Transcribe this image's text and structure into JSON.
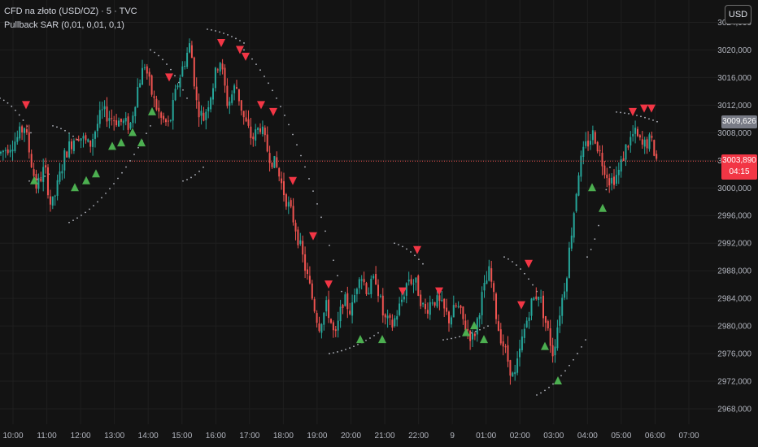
{
  "legend": {
    "symbol": "CFD na złoto (USD/OZ) · 5 · TVC",
    "indicator": "Pullback SAR (0,01, 0,01, 0,1)"
  },
  "currency_button": "USD",
  "price_tags": {
    "sar_value": "3009,626",
    "last_price": "3003,890",
    "countdown": "04:15"
  },
  "colors": {
    "background": "#131313",
    "up": "#26a69a",
    "down": "#ef5350",
    "buy_marker": "#4caf50",
    "sell_marker": "#f23645",
    "sar_dots": "#b2b5be"
  },
  "chart_data": {
    "type": "candlestick",
    "title": "",
    "y_axis": {
      "range": [
        2966,
        3027
      ],
      "ticks": [
        "3024,000",
        "3020,000",
        "3016,000",
        "3012,000",
        "3008,000",
        "3004,000",
        "3000,000",
        "2996,000",
        "2992,000",
        "2988,000",
        "2984,000",
        "2980,000",
        "2976,000",
        "2972,000",
        "2968,000"
      ],
      "tick_values": [
        3024,
        3020,
        3016,
        3012,
        3008,
        3004,
        3000,
        2996,
        2992,
        2988,
        2984,
        2980,
        2976,
        2972,
        2968
      ]
    },
    "x_axis": {
      "ticks": [
        "10:00",
        "11:00",
        "12:00",
        "13:00",
        "14:00",
        "15:00",
        "16:00",
        "17:00",
        "18:00",
        "19:00",
        "20:00",
        "21:00",
        "22:00",
        "9",
        "01:00",
        "02:00",
        "03:00",
        "04:00",
        "05:00",
        "06:00",
        "07:00"
      ]
    },
    "grid": true,
    "last_price_line": 3003.89,
    "price_path": [
      [
        0,
        3005
      ],
      [
        20,
        3007
      ],
      [
        30,
        3009
      ],
      [
        38,
        3004
      ],
      [
        45,
        3000
      ],
      [
        55,
        3003
      ],
      [
        63,
        2997
      ],
      [
        70,
        3000
      ],
      [
        80,
        3005
      ],
      [
        95,
        3008
      ],
      [
        110,
        3006
      ],
      [
        125,
        3011
      ],
      [
        140,
        3010
      ],
      [
        160,
        3009
      ],
      [
        170,
        3015
      ],
      [
        178,
        3018
      ],
      [
        188,
        3013
      ],
      [
        198,
        3010
      ],
      [
        208,
        3009
      ],
      [
        218,
        3015
      ],
      [
        226,
        3018
      ],
      [
        234,
        3021
      ],
      [
        242,
        3012
      ],
      [
        250,
        3010
      ],
      [
        260,
        3014
      ],
      [
        270,
        3019
      ],
      [
        280,
        3012
      ],
      [
        290,
        3015
      ],
      [
        300,
        3010
      ],
      [
        310,
        3007
      ],
      [
        320,
        3009
      ],
      [
        330,
        3005
      ],
      [
        340,
        3003
      ],
      [
        350,
        2999
      ],
      [
        362,
        2995
      ],
      [
        372,
        2990
      ],
      [
        382,
        2985
      ],
      [
        392,
        2980
      ],
      [
        402,
        2983
      ],
      [
        412,
        2978
      ],
      [
        422,
        2984
      ],
      [
        432,
        2982
      ],
      [
        442,
        2988
      ],
      [
        452,
        2985
      ],
      [
        462,
        2987
      ],
      [
        472,
        2981
      ],
      [
        482,
        2980
      ],
      [
        492,
        2983
      ],
      [
        502,
        2987
      ],
      [
        512,
        2986
      ],
      [
        522,
        2982
      ],
      [
        532,
        2984
      ],
      [
        542,
        2983
      ],
      [
        552,
        2981
      ],
      [
        562,
        2983
      ],
      [
        572,
        2980
      ],
      [
        582,
        2978
      ],
      [
        592,
        2984
      ],
      [
        602,
        2988
      ],
      [
        612,
        2980
      ],
      [
        622,
        2976
      ],
      [
        632,
        2972
      ],
      [
        642,
        2978
      ],
      [
        652,
        2983
      ],
      [
        662,
        2985
      ],
      [
        672,
        2980
      ],
      [
        680,
        2976
      ],
      [
        688,
        2982
      ],
      [
        696,
        2987
      ],
      [
        704,
        2995
      ],
      [
        712,
        3003
      ],
      [
        720,
        3006
      ],
      [
        730,
        3008
      ],
      [
        740,
        3004
      ],
      [
        750,
        3001
      ],
      [
        760,
        3002
      ],
      [
        770,
        3006
      ],
      [
        780,
        3008
      ],
      [
        790,
        3006
      ],
      [
        800,
        3007
      ],
      [
        808,
        3003.89
      ]
    ],
    "sar_dots": [
      {
        "from": [
          0,
          3013
        ],
        "to": [
          38,
          3008
        ]
      },
      {
        "from": [
          36,
          3001
        ],
        "to": [
          60,
          3002
        ]
      },
      {
        "from": [
          65,
          3009
        ],
        "to": [
          95,
          3007
        ]
      },
      {
        "from": [
          85,
          2995
        ],
        "to": [
          185,
          3009
        ]
      },
      {
        "from": [
          185,
          3020
        ],
        "to": [
          230,
          3013
        ]
      },
      {
        "from": [
          225,
          3001
        ],
        "to": [
          250,
          3003
        ]
      },
      {
        "from": [
          255,
          3023
        ],
        "to": [
          300,
          3021
        ]
      },
      {
        "from": [
          300,
          3020
        ],
        "to": [
          420,
          2985
        ]
      },
      {
        "from": [
          405,
          2976
        ],
        "to": [
          465,
          2979
        ]
      },
      {
        "from": [
          485,
          2992
        ],
        "to": [
          520,
          2989
        ]
      },
      {
        "from": [
          545,
          2978
        ],
        "to": [
          600,
          2980
        ]
      },
      {
        "from": [
          620,
          2990
        ],
        "to": [
          660,
          2985
        ]
      },
      {
        "from": [
          660,
          2970
        ],
        "to": [
          720,
          2978
        ]
      },
      {
        "from": [
          722,
          2990
        ],
        "to": [
          750,
          3003
        ]
      },
      {
        "from": [
          758,
          3011
        ],
        "to": [
          808,
          3009.6
        ]
      }
    ],
    "buy_signals": [
      [
        42,
        3001
      ],
      [
        92,
        3000
      ],
      [
        106,
        3001
      ],
      [
        118,
        3002
      ],
      [
        138,
        3006
      ],
      [
        149,
        3006.5
      ],
      [
        163,
        3008
      ],
      [
        174,
        3006.5
      ],
      [
        187,
        3011
      ],
      [
        443,
        2978
      ],
      [
        470,
        2978
      ],
      [
        573,
        2979
      ],
      [
        583,
        2980
      ],
      [
        595,
        2978
      ],
      [
        670,
        2977
      ],
      [
        686,
        2972
      ],
      [
        728,
        3000
      ],
      [
        741,
        2997
      ]
    ],
    "sell_signals": [
      [
        32,
        3012
      ],
      [
        208,
        3016
      ],
      [
        272,
        3021
      ],
      [
        295,
        3020
      ],
      [
        302,
        3019
      ],
      [
        321,
        3012
      ],
      [
        336,
        3011
      ],
      [
        360,
        3001
      ],
      [
        385,
        2993
      ],
      [
        404,
        2986
      ],
      [
        495,
        2985
      ],
      [
        513,
        2991
      ],
      [
        540,
        2985
      ],
      [
        641,
        2983
      ],
      [
        650,
        2989
      ],
      [
        778,
        3011
      ],
      [
        792,
        3011.5
      ],
      [
        801,
        3011.5
      ]
    ]
  }
}
